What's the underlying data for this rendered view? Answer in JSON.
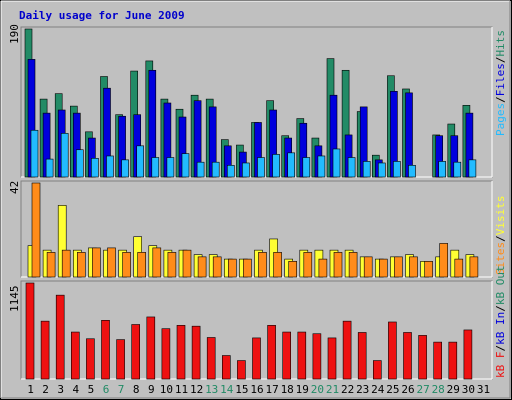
{
  "title": "Daily usage for June 2009",
  "colors": {
    "background": "#c0c0c0",
    "hits": "#228b66",
    "files": "#0000dd",
    "pages": "#22bbff",
    "visits": "#ffff33",
    "sites": "#ff8c1a",
    "kb": "#ee1111",
    "weekend_day_label": "#228b66",
    "title": "#0000cc"
  },
  "chart_data": [
    {
      "type": "bar",
      "panel": "hits-files-pages",
      "max_label": "190",
      "ylim": [
        0,
        190
      ],
      "categories": [
        "1",
        "2",
        "3",
        "4",
        "5",
        "6",
        "7",
        "8",
        "9",
        "10",
        "11",
        "12",
        "13",
        "14",
        "15",
        "16",
        "17",
        "18",
        "19",
        "20",
        "21",
        "22",
        "23",
        "24",
        "25",
        "26",
        "27",
        "28",
        "29",
        "30",
        "31"
      ],
      "weekend_days": [
        "6",
        "7",
        "13",
        "14",
        "20",
        "21",
        "27",
        "28"
      ],
      "series": [
        {
          "name": "Hits",
          "values": [
            190,
            100,
            107,
            91,
            58,
            129,
            80,
            136,
            149,
            100,
            87,
            105,
            100,
            48,
            41,
            70,
            98,
            53,
            75,
            50,
            152,
            137,
            84,
            28,
            130,
            113,
            0,
            54,
            68,
            92,
            0
          ]
        },
        {
          "name": "Files",
          "values": [
            151,
            82,
            86,
            82,
            50,
            114,
            78,
            80,
            137,
            95,
            77,
            98,
            90,
            40,
            32,
            70,
            86,
            50,
            69,
            40,
            105,
            54,
            90,
            22,
            110,
            108,
            0,
            53,
            53,
            82,
            0
          ]
        },
        {
          "name": "Pages",
          "values": [
            60,
            23,
            56,
            35,
            24,
            27,
            22,
            40,
            25,
            25,
            30,
            19,
            19,
            15,
            18,
            25,
            29,
            31,
            25,
            27,
            36,
            25,
            20,
            18,
            20,
            15,
            0,
            20,
            19,
            22,
            0
          ]
        }
      ],
      "legend": [
        "Pages",
        "Files",
        "Hits"
      ]
    },
    {
      "type": "bar",
      "panel": "visits-sites",
      "max_label": "42",
      "ylim": [
        0,
        42
      ],
      "categories": [
        "1",
        "2",
        "3",
        "4",
        "5",
        "6",
        "7",
        "8",
        "9",
        "10",
        "11",
        "12",
        "13",
        "14",
        "15",
        "16",
        "17",
        "18",
        "19",
        "20",
        "21",
        "22",
        "23",
        "24",
        "25",
        "26",
        "27",
        "28",
        "29",
        "30",
        "31"
      ],
      "series": [
        {
          "name": "Visits",
          "values": [
            14,
            12,
            32,
            12,
            13,
            12,
            12,
            18,
            14,
            12,
            12,
            10,
            10,
            8,
            8,
            12,
            17,
            8,
            12,
            12,
            12,
            12,
            9,
            8,
            9,
            10,
            7,
            9,
            12,
            10,
            0
          ]
        },
        {
          "name": "Sites",
          "values": [
            42,
            11,
            12,
            11,
            13,
            13,
            11,
            11,
            13,
            11,
            12,
            9,
            9,
            8,
            8,
            11,
            11,
            7,
            11,
            8,
            11,
            11,
            9,
            8,
            9,
            9,
            7,
            15,
            8,
            9,
            0
          ]
        }
      ],
      "legend": [
        "Sites",
        "Visits"
      ]
    },
    {
      "type": "bar",
      "panel": "kbytes",
      "max_label": "1145",
      "ylim": [
        0,
        1145
      ],
      "categories": [
        "1",
        "2",
        "3",
        "4",
        "5",
        "6",
        "7",
        "8",
        "9",
        "10",
        "11",
        "12",
        "13",
        "14",
        "15",
        "16",
        "17",
        "18",
        "19",
        "20",
        "21",
        "22",
        "23",
        "24",
        "25",
        "26",
        "27",
        "28",
        "29",
        "30",
        "31"
      ],
      "series": [
        {
          "name": "kB F",
          "values": [
            1145,
            690,
            1000,
            560,
            480,
            700,
            470,
            650,
            740,
            600,
            640,
            630,
            495,
            280,
            220,
            490,
            640,
            560,
            560,
            540,
            490,
            690,
            555,
            220,
            680,
            555,
            520,
            440,
            440,
            585,
            0
          ]
        }
      ],
      "legend": [
        "kB F",
        "kB In",
        "kB Out"
      ]
    }
  ]
}
